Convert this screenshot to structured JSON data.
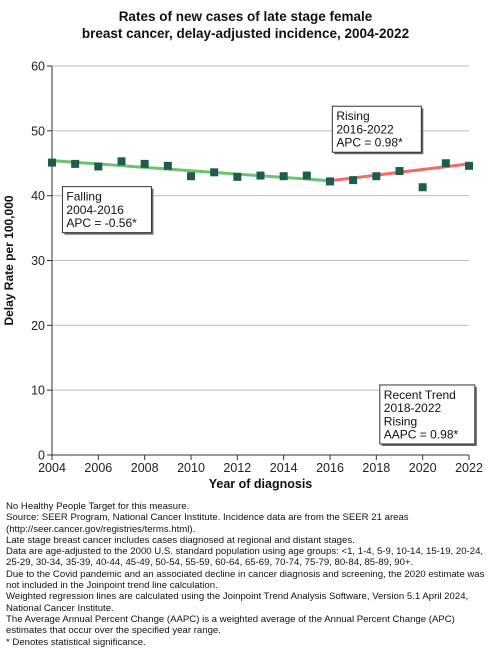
{
  "chart_data": {
    "type": "scatter",
    "title_lines": [
      "Rates of new cases of late stage female",
      "breast cancer, delay-adjusted incidence, 2004-2022"
    ],
    "xlabel": "Year of diagnosis",
    "ylabel": "Delay Rate per 100,000",
    "xlim": [
      2004,
      2022
    ],
    "ylim": [
      0,
      60
    ],
    "x_ticks": [
      2004,
      2006,
      2008,
      2010,
      2012,
      2014,
      2016,
      2018,
      2020,
      2022
    ],
    "y_ticks": [
      0,
      10,
      20,
      30,
      40,
      50,
      60
    ],
    "grid": "horizontal",
    "x": [
      2004,
      2005,
      2006,
      2007,
      2008,
      2009,
      2010,
      2011,
      2012,
      2013,
      2014,
      2015,
      2016,
      2017,
      2018,
      2019,
      2020,
      2021,
      2022
    ],
    "values": [
      45.1,
      44.9,
      44.5,
      45.3,
      44.9,
      44.6,
      43.0,
      43.6,
      42.9,
      43.1,
      43.0,
      43.1,
      42.2,
      42.4,
      43.0,
      43.8,
      41.3,
      45.0,
      44.6
    ],
    "marker_color": "#1e5c4f",
    "trends": [
      {
        "x": [
          2004,
          2016
        ],
        "y": [
          45.4,
          42.3
        ],
        "color": "#6cc36a"
      },
      {
        "x": [
          2016,
          2022
        ],
        "y": [
          42.3,
          44.9
        ],
        "color": "#f06c67"
      }
    ],
    "annotations": [
      {
        "lines": [
          "Falling",
          "2004-2016",
          "APC = -0.56*"
        ],
        "anchor": [
          2004.45,
          34.3
        ]
      },
      {
        "lines": [
          "Rising",
          "2016-2022",
          "APC =  0.98*"
        ],
        "anchor": [
          2016.1,
          46.7
        ]
      },
      {
        "lines": [
          "Recent Trend",
          "2018-2022",
          "Rising",
          "AAPC =  0.98*"
        ],
        "anchor": [
          2018.15,
          1.7
        ]
      }
    ]
  },
  "notes": [
    "No Healthy People Target for this measure.",
    "Source: SEER Program, National Cancer Institute. Incidence data are from the SEER 21 areas (http://seer.cancer.gov/registries/terms.html).",
    "Late stage breast cancer includes cases diagnosed at regional and distant stages.",
    "Data are age-adjusted to the 2000 U.S. standard population using age groups: <1, 1-4, 5-9, 10-14, 15-19, 20-24, 25-29, 30-34, 35-39, 40-44, 45-49, 50-54, 55-59, 60-64, 65-69, 70-74, 75-79, 80-84, 85-89, 90+.",
    "Due to the Covid pandemic and an associated decline in cancer diagnosis and screening, the 2020 estimate was not included in the Joinpoint trend line calculation.",
    "Weighted regression lines are calculated using the Joinpoint Trend Analysis Software, Version 5.1 April 2024, National Cancer Institute.",
    "The Average Annual Percent Change (AAPC) is a weighted average of the Annual Percent Change (APC) estimates that occur over the specified year range.",
    "* Denotes statistical significance."
  ]
}
